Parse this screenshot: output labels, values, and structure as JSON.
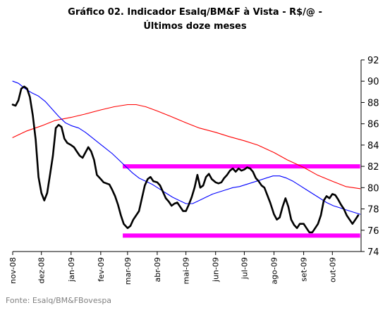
{
  "title_line1": "Gráfico 02. Indicador Esalq/BM&F à Vista - R$/@ -",
  "title_line2": "Últimos doze meses",
  "source": "Fonte: Esalq/BM&FBovespa",
  "chart_data": {
    "type": "line",
    "title": "Gráfico 02. Indicador Esalq/BM&F à Vista - R$/@ - Últimos doze meses",
    "xlabel": "",
    "ylabel": "",
    "ylim": [
      74,
      92
    ],
    "yticks": [
      74,
      76,
      78,
      80,
      82,
      84,
      86,
      88,
      90,
      92
    ],
    "y_axis_side": "right",
    "x_start": "2008-11-01",
    "x_end": "2009-10-31",
    "xtick_labels": [
      {
        "label": "nov-08",
        "date": "2008-11-01"
      },
      {
        "label": "dez-08",
        "date": "2008-12-01"
      },
      {
        "label": "jan-09",
        "date": "2009-01-01"
      },
      {
        "label": "fev-09",
        "date": "2009-02-01"
      },
      {
        "label": "mar-09",
        "date": "2009-03-01"
      },
      {
        "label": "abr-09",
        "date": "2009-04-01"
      },
      {
        "label": "mai-09",
        "date": "2009-05-01"
      },
      {
        "label": "jun-09",
        "date": "2009-06-01"
      },
      {
        "label": "jul-09",
        "date": "2009-07-01"
      },
      {
        "label": "ago-09",
        "date": "2009-08-01"
      },
      {
        "label": "set-09",
        "date": "2009-09-01"
      },
      {
        "label": "out-09",
        "date": "2009-10-01"
      }
    ],
    "grid": false,
    "legend": "none",
    "series": [
      {
        "color": "#000000",
        "points": [
          [
            "2008-11-01",
            87.8
          ],
          [
            "2008-11-04",
            87.7
          ],
          [
            "2008-11-07",
            88.2
          ],
          [
            "2008-11-10",
            89.3
          ],
          [
            "2008-11-13",
            89.5
          ],
          [
            "2008-11-16",
            89.3
          ],
          [
            "2008-11-19",
            88.5
          ],
          [
            "2008-11-22",
            86.8
          ],
          [
            "2008-11-25",
            84.5
          ],
          [
            "2008-11-28",
            81.0
          ],
          [
            "2008-12-01",
            79.5
          ],
          [
            "2008-12-04",
            78.8
          ],
          [
            "2008-12-07",
            79.5
          ],
          [
            "2008-12-10",
            81.2
          ],
          [
            "2008-12-13",
            83.0
          ],
          [
            "2008-12-16",
            85.6
          ],
          [
            "2008-12-19",
            85.9
          ],
          [
            "2008-12-22",
            85.7
          ],
          [
            "2008-12-25",
            84.6
          ],
          [
            "2008-12-28",
            84.2
          ],
          [
            "2009-01-01",
            84.0
          ],
          [
            "2009-01-04",
            83.8
          ],
          [
            "2009-01-07",
            83.4
          ],
          [
            "2009-01-10",
            83.0
          ],
          [
            "2009-01-13",
            82.8
          ],
          [
            "2009-01-16",
            83.3
          ],
          [
            "2009-01-19",
            83.8
          ],
          [
            "2009-01-22",
            83.4
          ],
          [
            "2009-01-25",
            82.6
          ],
          [
            "2009-01-28",
            81.2
          ],
          [
            "2009-02-01",
            80.8
          ],
          [
            "2009-02-04",
            80.5
          ],
          [
            "2009-02-07",
            80.4
          ],
          [
            "2009-02-10",
            80.3
          ],
          [
            "2009-02-13",
            79.8
          ],
          [
            "2009-02-16",
            79.2
          ],
          [
            "2009-02-19",
            78.4
          ],
          [
            "2009-02-22",
            77.4
          ],
          [
            "2009-02-25",
            76.6
          ],
          [
            "2009-03-01",
            76.2
          ],
          [
            "2009-03-04",
            76.4
          ],
          [
            "2009-03-07",
            77.0
          ],
          [
            "2009-03-10",
            77.4
          ],
          [
            "2009-03-13",
            77.8
          ],
          [
            "2009-03-16",
            79.0
          ],
          [
            "2009-03-19",
            80.2
          ],
          [
            "2009-03-22",
            80.8
          ],
          [
            "2009-03-25",
            81.0
          ],
          [
            "2009-03-28",
            80.6
          ],
          [
            "2009-04-01",
            80.5
          ],
          [
            "2009-04-04",
            80.2
          ],
          [
            "2009-04-07",
            79.6
          ],
          [
            "2009-04-10",
            79.0
          ],
          [
            "2009-04-13",
            78.7
          ],
          [
            "2009-04-16",
            78.3
          ],
          [
            "2009-04-19",
            78.5
          ],
          [
            "2009-04-22",
            78.6
          ],
          [
            "2009-04-25",
            78.2
          ],
          [
            "2009-04-28",
            77.8
          ],
          [
            "2009-05-01",
            77.8
          ],
          [
            "2009-05-04",
            78.4
          ],
          [
            "2009-05-07",
            79.1
          ],
          [
            "2009-05-10",
            80.0
          ],
          [
            "2009-05-13",
            81.2
          ],
          [
            "2009-05-16",
            80.0
          ],
          [
            "2009-05-19",
            80.2
          ],
          [
            "2009-05-22",
            81.0
          ],
          [
            "2009-05-25",
            81.3
          ],
          [
            "2009-05-28",
            80.8
          ],
          [
            "2009-06-01",
            80.5
          ],
          [
            "2009-06-04",
            80.4
          ],
          [
            "2009-06-07",
            80.5
          ],
          [
            "2009-06-10",
            80.9
          ],
          [
            "2009-06-13",
            81.2
          ],
          [
            "2009-06-16",
            81.6
          ],
          [
            "2009-06-19",
            81.8
          ],
          [
            "2009-06-22",
            81.5
          ],
          [
            "2009-06-25",
            81.8
          ],
          [
            "2009-06-28",
            81.6
          ],
          [
            "2009-07-01",
            81.7
          ],
          [
            "2009-07-04",
            81.9
          ],
          [
            "2009-07-07",
            81.8
          ],
          [
            "2009-07-10",
            81.5
          ],
          [
            "2009-07-13",
            80.9
          ],
          [
            "2009-07-16",
            80.6
          ],
          [
            "2009-07-19",
            80.2
          ],
          [
            "2009-07-22",
            80.0
          ],
          [
            "2009-07-25",
            79.3
          ],
          [
            "2009-07-28",
            78.6
          ],
          [
            "2009-08-01",
            77.5
          ],
          [
            "2009-08-04",
            77.0
          ],
          [
            "2009-08-07",
            77.2
          ],
          [
            "2009-08-10",
            78.2
          ],
          [
            "2009-08-13",
            79.0
          ],
          [
            "2009-08-16",
            78.2
          ],
          [
            "2009-08-19",
            77.0
          ],
          [
            "2009-08-22",
            76.5
          ],
          [
            "2009-08-25",
            76.2
          ],
          [
            "2009-08-28",
            76.6
          ],
          [
            "2009-09-01",
            76.6
          ],
          [
            "2009-09-04",
            76.2
          ],
          [
            "2009-09-07",
            75.8
          ],
          [
            "2009-09-10",
            75.8
          ],
          [
            "2009-09-13",
            76.2
          ],
          [
            "2009-09-16",
            76.6
          ],
          [
            "2009-09-19",
            77.4
          ],
          [
            "2009-09-22",
            78.8
          ],
          [
            "2009-09-25",
            79.2
          ],
          [
            "2009-09-28",
            79.0
          ],
          [
            "2009-10-01",
            79.4
          ],
          [
            "2009-10-04",
            79.3
          ],
          [
            "2009-10-07",
            78.9
          ],
          [
            "2009-10-10",
            78.4
          ],
          [
            "2009-10-13",
            78.0
          ],
          [
            "2009-10-16",
            77.4
          ],
          [
            "2009-10-19",
            77.0
          ],
          [
            "2009-10-22",
            76.6
          ],
          [
            "2009-10-25",
            77.0
          ],
          [
            "2009-10-28",
            77.4
          ]
        ]
      },
      {
        "color": "#0000ff",
        "points": [
          [
            "2008-11-01",
            90.0
          ],
          [
            "2008-11-07",
            89.8
          ],
          [
            "2008-11-14",
            89.3
          ],
          [
            "2008-11-21",
            88.9
          ],
          [
            "2008-11-28",
            88.6
          ],
          [
            "2008-12-05",
            88.1
          ],
          [
            "2008-12-12",
            87.4
          ],
          [
            "2008-12-19",
            86.7
          ],
          [
            "2008-12-26",
            86.1
          ],
          [
            "2009-01-02",
            85.8
          ],
          [
            "2009-01-09",
            85.6
          ],
          [
            "2009-01-16",
            85.2
          ],
          [
            "2009-01-23",
            84.7
          ],
          [
            "2009-01-30",
            84.2
          ],
          [
            "2009-02-06",
            83.7
          ],
          [
            "2009-02-13",
            83.2
          ],
          [
            "2009-02-20",
            82.6
          ],
          [
            "2009-02-27",
            82.0
          ],
          [
            "2009-03-06",
            81.4
          ],
          [
            "2009-03-13",
            80.9
          ],
          [
            "2009-03-20",
            80.6
          ],
          [
            "2009-03-27",
            80.3
          ],
          [
            "2009-04-03",
            79.9
          ],
          [
            "2009-04-10",
            79.5
          ],
          [
            "2009-04-17",
            79.1
          ],
          [
            "2009-04-24",
            78.8
          ],
          [
            "2009-05-01",
            78.5
          ],
          [
            "2009-05-08",
            78.5
          ],
          [
            "2009-05-15",
            78.8
          ],
          [
            "2009-05-22",
            79.1
          ],
          [
            "2009-05-29",
            79.4
          ],
          [
            "2009-06-05",
            79.6
          ],
          [
            "2009-06-12",
            79.8
          ],
          [
            "2009-06-19",
            80.0
          ],
          [
            "2009-06-26",
            80.1
          ],
          [
            "2009-07-03",
            80.3
          ],
          [
            "2009-07-10",
            80.5
          ],
          [
            "2009-07-17",
            80.7
          ],
          [
            "2009-07-24",
            80.9
          ],
          [
            "2009-07-31",
            81.1
          ],
          [
            "2009-08-07",
            81.1
          ],
          [
            "2009-08-14",
            80.9
          ],
          [
            "2009-08-21",
            80.6
          ],
          [
            "2009-08-28",
            80.2
          ],
          [
            "2009-09-04",
            79.8
          ],
          [
            "2009-09-11",
            79.4
          ],
          [
            "2009-09-18",
            79.0
          ],
          [
            "2009-09-25",
            78.6
          ],
          [
            "2009-10-02",
            78.3
          ],
          [
            "2009-10-09",
            78.1
          ],
          [
            "2009-10-16",
            77.9
          ],
          [
            "2009-10-23",
            77.7
          ],
          [
            "2009-10-30",
            77.5
          ]
        ]
      },
      {
        "color": "#ff0000",
        "points": [
          [
            "2008-11-01",
            84.7
          ],
          [
            "2008-11-15",
            85.3
          ],
          [
            "2008-12-01",
            85.8
          ],
          [
            "2008-12-15",
            86.3
          ],
          [
            "2009-01-01",
            86.6
          ],
          [
            "2009-01-15",
            86.9
          ],
          [
            "2009-02-01",
            87.3
          ],
          [
            "2009-02-15",
            87.6
          ],
          [
            "2009-03-01",
            87.8
          ],
          [
            "2009-03-10",
            87.8
          ],
          [
            "2009-03-20",
            87.6
          ],
          [
            "2009-04-01",
            87.2
          ],
          [
            "2009-04-15",
            86.7
          ],
          [
            "2009-05-01",
            86.1
          ],
          [
            "2009-05-15",
            85.6
          ],
          [
            "2009-06-01",
            85.2
          ],
          [
            "2009-06-15",
            84.8
          ],
          [
            "2009-07-01",
            84.4
          ],
          [
            "2009-07-15",
            84.0
          ],
          [
            "2009-08-01",
            83.3
          ],
          [
            "2009-08-15",
            82.6
          ],
          [
            "2009-09-01",
            81.9
          ],
          [
            "2009-09-15",
            81.2
          ],
          [
            "2009-10-01",
            80.6
          ],
          [
            "2009-10-15",
            80.1
          ],
          [
            "2009-10-30",
            79.9
          ]
        ]
      }
    ],
    "reference_lines": [
      {
        "color": "#ff00ff",
        "y": 82.0,
        "x_from": "2009-02-24",
        "x_to": "2009-10-30"
      },
      {
        "color": "#ff00ff",
        "y": 75.5,
        "x_from": "2009-02-24",
        "x_to": "2009-10-30"
      }
    ]
  }
}
